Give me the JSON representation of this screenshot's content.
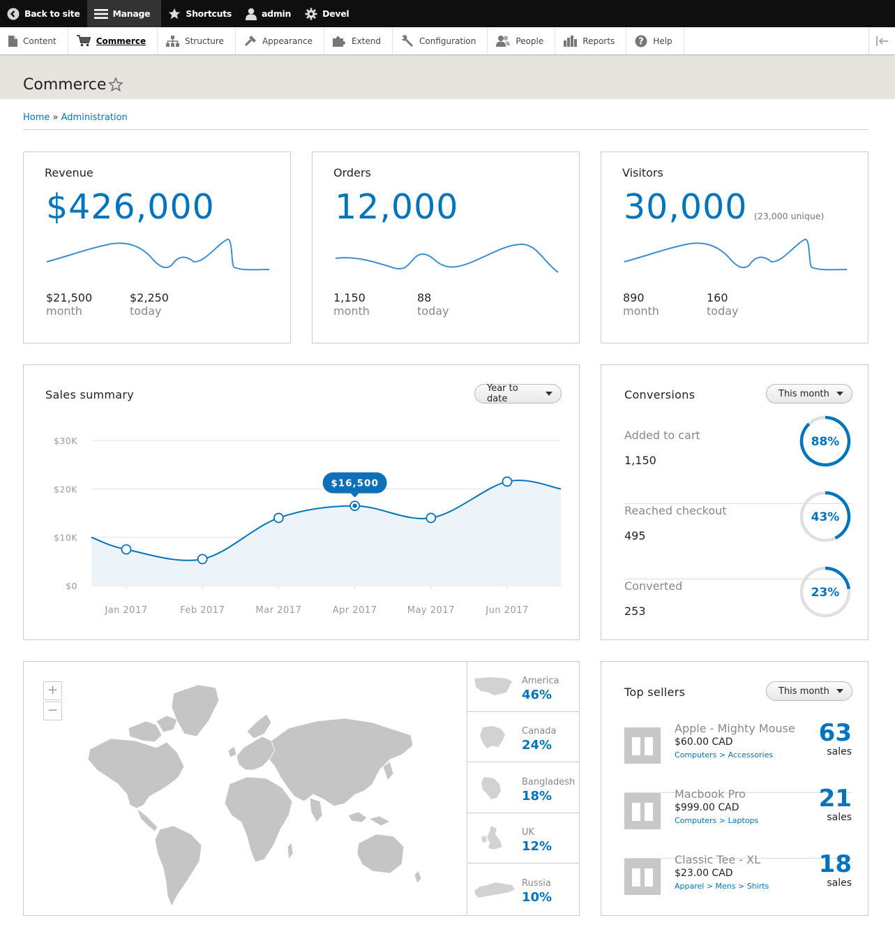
{
  "toolbar": {
    "back": "Back to site",
    "manage": "Manage",
    "shortcuts": "Shortcuts",
    "user": "admin",
    "devel": "Devel"
  },
  "tray": [
    "Content",
    "Commerce",
    "Structure",
    "Appearance",
    "Extend",
    "Configuration",
    "People",
    "Reports",
    "Help"
  ],
  "page": {
    "title": "Commerce"
  },
  "breadcrumb": {
    "home": "Home",
    "sep": "»",
    "admin": "Administration"
  },
  "stats": {
    "revenue": {
      "title": "Revenue",
      "value": "$426,000",
      "month_value": "$21,500",
      "month_label": "month",
      "today_value": "$2,250",
      "today_label": "today"
    },
    "orders": {
      "title": "Orders",
      "value": "12,000",
      "month_value": "1,150",
      "month_label": "month",
      "today_value": "88",
      "today_label": "today"
    },
    "visitors": {
      "title": "Visitors",
      "value": "30,000",
      "extra": "(23,000 unique)",
      "month_value": "890",
      "month_label": "month",
      "today_value": "160",
      "today_label": "today"
    }
  },
  "sales_summary": {
    "title": "Sales summary",
    "period": "Year to date",
    "tooltip": "$16,500"
  },
  "chart_data": {
    "type": "area",
    "categories": [
      "Jan 2017",
      "Feb 2017",
      "Mar 2017",
      "Apr 2017",
      "May 2017",
      "Jun 2017"
    ],
    "values": [
      7500,
      5500,
      14000,
      16500,
      14000,
      21500
    ],
    "ylim": [
      0,
      30000
    ],
    "yticks": [
      "$0",
      "$10K",
      "$20K",
      "$30K"
    ],
    "grid": true,
    "color": "#0074bd"
  },
  "conversions": {
    "title": "Conversions",
    "period": "This month",
    "items": [
      {
        "label": "Added to cart",
        "value": "1,150",
        "percent": "88%",
        "fraction": 0.88
      },
      {
        "label": "Reached checkout",
        "value": "495",
        "percent": "43%",
        "fraction": 0.43
      },
      {
        "label": "Converted",
        "value": "253",
        "percent": "23%",
        "fraction": 0.23
      }
    ]
  },
  "map": {
    "zoom_in": "+",
    "zoom_out": "−",
    "regions": [
      {
        "name": "America",
        "percent": "46%"
      },
      {
        "name": "Canada",
        "percent": "24%"
      },
      {
        "name": "Bangladesh",
        "percent": "18%"
      },
      {
        "name": "UK",
        "percent": "12%"
      },
      {
        "name": "Russia",
        "percent": "10%"
      }
    ]
  },
  "top_sellers": {
    "title": "Top sellers",
    "period": "This month",
    "items": [
      {
        "name": "Apple - Mighty Mouse",
        "price": "$60.00 CAD",
        "category": "Computers > Accessories",
        "count": "63",
        "unit": "sales"
      },
      {
        "name": "Macbook Pro",
        "price": "$999.00 CAD",
        "category": "Computers > Laptops",
        "count": "21",
        "unit": "sales"
      },
      {
        "name": "Classic Tee - XL",
        "price": "$23.00 CAD",
        "category": "Apparel > Mens > Shirts",
        "count": "18",
        "unit": "sales"
      }
    ]
  },
  "colors": {
    "accent": "#0074bd",
    "toolbar": "#0f0f0f",
    "page_header": "#e5e4df"
  }
}
